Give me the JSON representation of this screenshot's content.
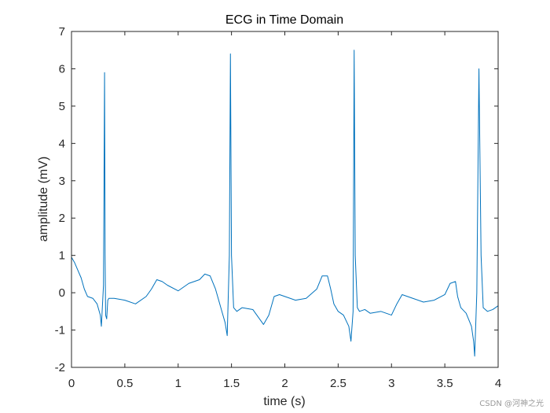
{
  "chart_data": {
    "type": "line",
    "title": "ECG in Time Domain",
    "xlabel": "time (s)",
    "ylabel": "amplitude (mV)",
    "xlim": [
      0,
      4
    ],
    "ylim": [
      -2,
      7
    ],
    "xticks": [
      0,
      0.5,
      1,
      1.5,
      2,
      2.5,
      3,
      3.5,
      4
    ],
    "xtick_labels": [
      "0",
      "0.5",
      "1",
      "1.5",
      "2",
      "2.5",
      "3",
      "3.5",
      "4"
    ],
    "yticks": [
      -2,
      -1,
      0,
      1,
      2,
      3,
      4,
      5,
      6,
      7
    ],
    "ytick_labels": [
      "-2",
      "-1",
      "0",
      "1",
      "2",
      "3",
      "4",
      "5",
      "6",
      "7"
    ],
    "grid": false,
    "line_color": "#0072BD",
    "series": [
      {
        "x": [
          0,
          0.03,
          0.06,
          0.09,
          0.12,
          0.15,
          0.2,
          0.24,
          0.27,
          0.28,
          0.3,
          0.31,
          0.315,
          0.32,
          0.33,
          0.34,
          0.35,
          0.4,
          0.5,
          0.6,
          0.7,
          0.75,
          0.8,
          0.85,
          0.9,
          1.0,
          1.1,
          1.2,
          1.25,
          1.3,
          1.35,
          1.4,
          1.42,
          1.44,
          1.46,
          1.48,
          1.49,
          1.5,
          1.52,
          1.55,
          1.6,
          1.7,
          1.8,
          1.85,
          1.9,
          1.95,
          2.0,
          2.1,
          2.2,
          2.3,
          2.35,
          2.4,
          2.43,
          2.46,
          2.5,
          2.55,
          2.6,
          2.62,
          2.64,
          2.65,
          2.66,
          2.68,
          2.7,
          2.75,
          2.8,
          2.9,
          3.0,
          3.05,
          3.1,
          3.2,
          3.3,
          3.4,
          3.5,
          3.55,
          3.6,
          3.62,
          3.65,
          3.7,
          3.75,
          3.77,
          3.78,
          3.8,
          3.82,
          3.84,
          3.86,
          3.9,
          3.95,
          4.0
        ],
        "y": [
          0.95,
          0.8,
          0.6,
          0.4,
          0.1,
          -0.1,
          -0.15,
          -0.3,
          -0.6,
          -0.9,
          0.2,
          5.9,
          1.0,
          -0.6,
          -0.7,
          -0.2,
          -0.15,
          -0.15,
          -0.2,
          -0.3,
          -0.1,
          0.1,
          0.35,
          0.3,
          0.2,
          0.05,
          0.25,
          0.35,
          0.5,
          0.45,
          0.1,
          -0.4,
          -0.6,
          -0.8,
          -1.15,
          1.0,
          6.4,
          1.0,
          -0.4,
          -0.5,
          -0.4,
          -0.45,
          -0.85,
          -0.6,
          -0.1,
          -0.05,
          -0.1,
          -0.2,
          -0.15,
          0.1,
          0.45,
          0.45,
          0.1,
          -0.3,
          -0.5,
          -0.6,
          -0.9,
          -1.3,
          -0.5,
          6.5,
          1.0,
          -0.4,
          -0.5,
          -0.45,
          -0.55,
          -0.5,
          -0.6,
          -0.3,
          -0.05,
          -0.15,
          -0.25,
          -0.2,
          -0.05,
          0.25,
          0.3,
          -0.1,
          -0.4,
          -0.55,
          -0.9,
          -1.3,
          -1.7,
          0.0,
          6.0,
          1.0,
          -0.4,
          -0.5,
          -0.45,
          -0.35
        ]
      }
    ]
  },
  "watermark": "CSDN @河神之光"
}
